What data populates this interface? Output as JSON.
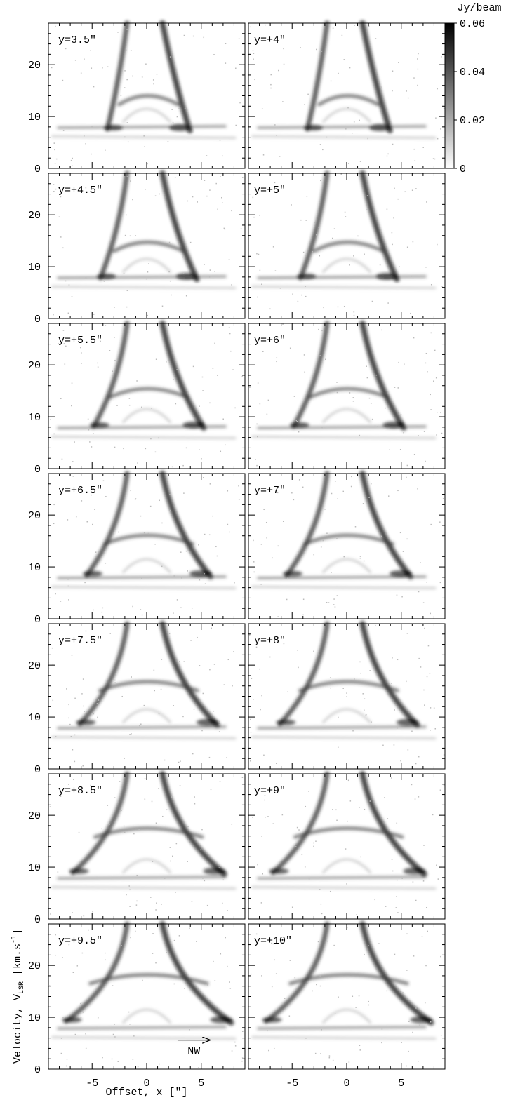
{
  "chart_data": {
    "type": "pv-grid",
    "panels": [
      "y=3.5″",
      "y=+4″",
      "y=+4.5″",
      "y=+5″",
      "y=+5.5″",
      "y=+6″",
      "y=+6.5″",
      "y=+7″",
      "y=+7.5″",
      "y=+8″",
      "y=+8.5″",
      "y=+9″",
      "y=+9.5″",
      "y=+10″"
    ],
    "xlabel": "Offset, x [″]",
    "ylabel": [
      "Velocity, V",
      "LSR",
      " [km.s",
      "-1",
      "]"
    ],
    "xlim": [
      -9,
      9
    ],
    "ylim": [
      0,
      28
    ],
    "xticks": [
      -5,
      0,
      5
    ],
    "yticks": [
      0,
      10,
      20
    ],
    "xminorticks": [
      -8,
      -7,
      -6,
      -4,
      -3,
      -2,
      -1,
      1,
      2,
      3,
      4,
      6,
      7,
      8
    ],
    "yminorticks": [
      2,
      4,
      6,
      8,
      12,
      14,
      16,
      18,
      22,
      24,
      26
    ],
    "colorbar": {
      "label": "Jy/beam",
      "lim": [
        0,
        0.06
      ],
      "ticks": [
        0,
        0.02,
        0.04,
        0.06
      ],
      "colors": [
        "#ffffff",
        "#000000"
      ]
    },
    "annotation": "NW"
  }
}
